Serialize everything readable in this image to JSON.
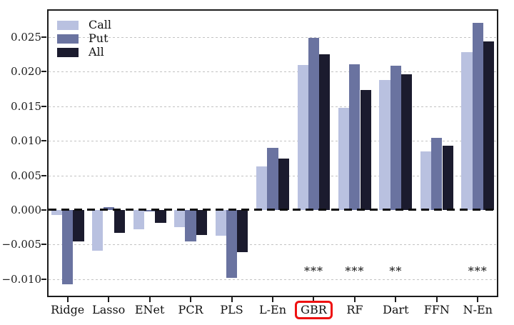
{
  "chart_data": {
    "type": "bar",
    "title": "",
    "xlabel": "",
    "ylabel": "",
    "categories": [
      "Ridge",
      "Lasso",
      "ENet",
      "PCR",
      "PLS",
      "L-En",
      "GBR",
      "RF",
      "Dart",
      "FFN",
      "N-En"
    ],
    "series": [
      {
        "name": "Call",
        "color": "#b9c1e0",
        "values": [
          -0.0007,
          -0.0059,
          -0.0028,
          -0.0025,
          -0.0037,
          0.0063,
          0.021,
          0.0148,
          0.0188,
          0.0085,
          0.0228
        ]
      },
      {
        "name": "Put",
        "color": "#6a73a0",
        "values": [
          -0.0107,
          0.0004,
          -0.0002,
          -0.0046,
          -0.0098,
          0.009,
          0.0249,
          0.0211,
          0.0208,
          0.0104,
          0.027
        ]
      },
      {
        "name": "All",
        "color": "#1b1b2e",
        "values": [
          -0.0046,
          -0.0033,
          -0.0019,
          -0.0036,
          -0.0061,
          0.0074,
          0.0225,
          0.0173,
          0.0196,
          0.0093,
          0.0244
        ]
      }
    ],
    "y_ticks": [
      {
        "value": 0.025,
        "label": "0.025"
      },
      {
        "value": 0.02,
        "label": "0.020"
      },
      {
        "value": 0.015,
        "label": "0.015"
      },
      {
        "value": 0.01,
        "label": "0.010"
      },
      {
        "value": 0.005,
        "label": "0.005"
      },
      {
        "value": 0.0,
        "label": "0.000"
      },
      {
        "value": -0.005,
        "label": "−0.005"
      },
      {
        "value": -0.01,
        "label": "−0.010"
      }
    ],
    "ylim": [
      -0.0126,
      0.029
    ],
    "grid": "horizontal-dashed",
    "zero_line_dashed": true,
    "legend_position": "upper-left",
    "significance": {
      "y": -0.0085,
      "markers": [
        {
          "category": "GBR",
          "label": "***"
        },
        {
          "category": "RF",
          "label": "***"
        },
        {
          "category": "Dart",
          "label": "**"
        },
        {
          "category": "N-En",
          "label": "***"
        }
      ]
    },
    "highlight": {
      "category": "GBR",
      "box_color": "#ee1111"
    }
  },
  "colors": {
    "background": "#ffffff",
    "axis": "#1c1c1c",
    "grid": "#c3c3c3",
    "zero_line": "#0d0d0d",
    "highlight_box": "#ee1111"
  }
}
